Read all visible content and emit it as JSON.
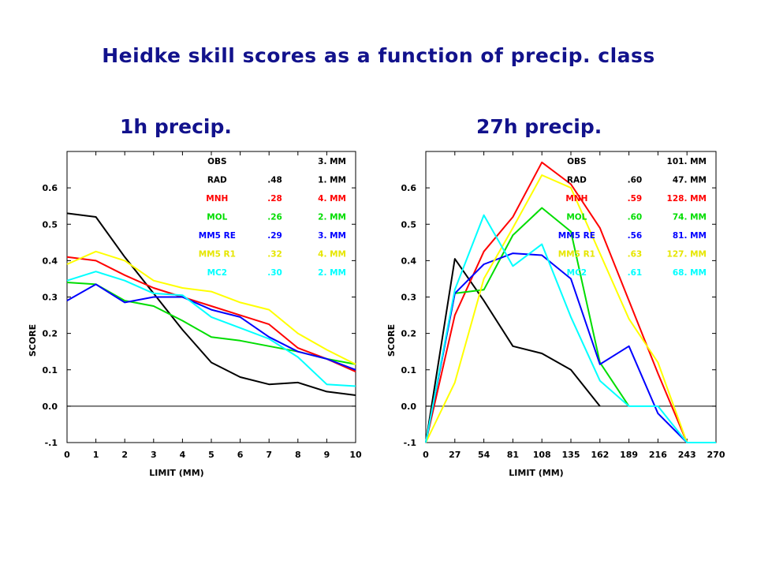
{
  "title": "Heidke skill scores as a function of precip. class",
  "chart_data": [
    {
      "type": "line",
      "title": "1h precip.",
      "xlabel": "LIMIT (MM)",
      "ylabel": "SCORE",
      "x": [
        0,
        1,
        2,
        3,
        4,
        5,
        6,
        7,
        8,
        9,
        10
      ],
      "xticks": [
        "0",
        "1",
        "2",
        "3",
        "4",
        "5",
        "6",
        "7",
        "8",
        "9",
        "10"
      ],
      "xlim": [
        0,
        10
      ],
      "ylim": [
        -0.1,
        0.7
      ],
      "yticks": [
        "-.1",
        "0.0",
        "0.1",
        "0.2",
        "0.3",
        "0.4",
        "0.5",
        "0.6"
      ],
      "zero_line": true,
      "grid": false,
      "legend_position": "top-right",
      "series": [
        {
          "name": "OBS",
          "score": "",
          "amount": "3. MM",
          "color": "#000000",
          "values": [
            0.53,
            0.52,
            0.41,
            0.31,
            0.21,
            0.12,
            0.08,
            0.06,
            0.065,
            0.04,
            0.03
          ]
        },
        {
          "name": "RAD",
          "score": ".48",
          "amount": "1. MM",
          "color": "#000000",
          "values": null
        },
        {
          "name": "MNH",
          "score": ".28",
          "amount": "4. MM",
          "color": "#ff0000",
          "values": [
            0.41,
            0.4,
            0.36,
            0.325,
            0.3,
            0.275,
            0.25,
            0.225,
            0.16,
            0.13,
            0.095
          ]
        },
        {
          "name": "MOL",
          "score": ".26",
          "amount": "2. MM",
          "color": "#00dd00",
          "values": [
            0.34,
            0.335,
            0.29,
            0.275,
            0.235,
            0.19,
            0.18,
            0.165,
            0.15,
            0.13,
            0.115
          ]
        },
        {
          "name": "MM5 RE",
          "score": ".29",
          "amount": "3. MM",
          "color": "#0000ff",
          "values": [
            0.29,
            0.335,
            0.285,
            0.3,
            0.3,
            0.265,
            0.245,
            0.19,
            0.15,
            0.13,
            0.1
          ]
        },
        {
          "name": "MM5 R1",
          "score": ".32",
          "amount": "4. MM",
          "color": "#ffff00",
          "values": [
            0.39,
            0.425,
            0.4,
            0.345,
            0.325,
            0.315,
            0.285,
            0.265,
            0.2,
            0.155,
            0.115
          ]
        },
        {
          "name": "MC2",
          "score": ".30",
          "amount": "2. MM",
          "color": "#00ffff",
          "values": [
            0.345,
            0.37,
            0.345,
            0.31,
            0.305,
            0.245,
            0.215,
            0.185,
            0.135,
            0.06,
            0.055
          ]
        }
      ]
    },
    {
      "type": "line",
      "title": "27h precip.",
      "xlabel": "LIMIT (MM)",
      "ylabel": "SCORE",
      "x": [
        0,
        27,
        54,
        81,
        108,
        135,
        162,
        189,
        216,
        243,
        270
      ],
      "xticks": [
        "0",
        "27",
        "54",
        "81",
        "108",
        "135",
        "162",
        "189",
        "216",
        "243",
        "270"
      ],
      "xlim": [
        0,
        270
      ],
      "ylim": [
        -0.1,
        0.7
      ],
      "yticks": [
        "-.1",
        "0.0",
        "0.1",
        "0.2",
        "0.3",
        "0.4",
        "0.5",
        "0.6"
      ],
      "zero_line": true,
      "grid": false,
      "legend_position": "top-right",
      "series": [
        {
          "name": "OBS",
          "score": "",
          "amount": "101. MM",
          "color": "#000000",
          "values": [
            -0.1,
            0.405,
            0.29,
            0.165,
            0.145,
            0.1,
            0.0,
            null,
            null,
            null,
            null
          ]
        },
        {
          "name": "RAD",
          "score": ".60",
          "amount": "47. MM",
          "color": "#000000",
          "values": null
        },
        {
          "name": "MNH",
          "score": ".59",
          "amount": "128. MM",
          "color": "#ff0000",
          "values": [
            -0.1,
            0.25,
            0.425,
            0.52,
            0.67,
            0.61,
            0.49,
            0.29,
            0.09,
            -0.1,
            null
          ]
        },
        {
          "name": "MOL",
          "score": ".60",
          "amount": "74. MM",
          "color": "#00dd00",
          "values": [
            -0.1,
            0.31,
            0.32,
            0.47,
            0.545,
            0.48,
            0.12,
            0.0,
            null,
            null,
            null
          ]
        },
        {
          "name": "MM5 RE",
          "score": ".56",
          "amount": "81. MM",
          "color": "#0000ff",
          "values": [
            -0.1,
            0.31,
            0.39,
            0.42,
            0.415,
            0.35,
            0.115,
            0.165,
            -0.02,
            -0.1,
            null
          ]
        },
        {
          "name": "MM5 R1",
          "score": ".63",
          "amount": "127. MM",
          "color": "#ffff00",
          "values": [
            -0.1,
            0.065,
            0.35,
            0.49,
            0.635,
            0.6,
            0.42,
            0.24,
            0.12,
            -0.1,
            null
          ]
        },
        {
          "name": "MC2",
          "score": ".61",
          "amount": "68. MM",
          "color": "#00ffff",
          "values": [
            -0.1,
            0.32,
            0.525,
            0.385,
            0.445,
            0.245,
            0.07,
            0.0,
            0.0,
            -0.1,
            -0.1
          ]
        }
      ]
    }
  ]
}
